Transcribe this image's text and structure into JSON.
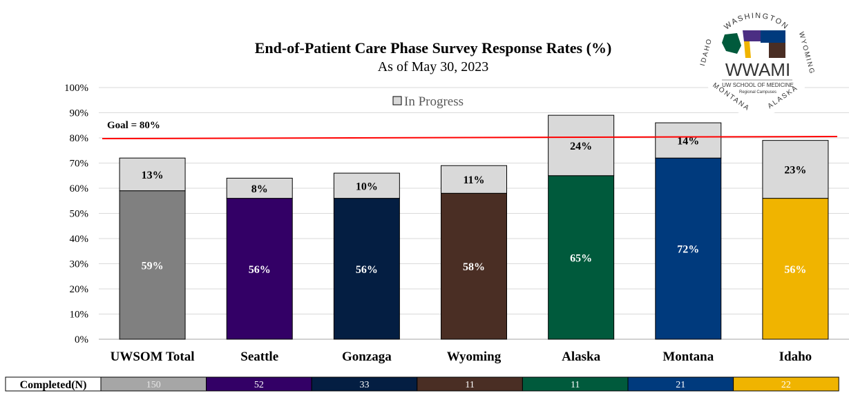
{
  "chart_data": {
    "type": "bar",
    "stacked": true,
    "title": "End-of-Patient Care Phase Survey Response Rates (%)",
    "subtitle": "As of May 30, 2023",
    "categories": [
      "UWSOM Total",
      "Seattle",
      "Gonzaga",
      "Wyoming",
      "Alaska",
      "Montana",
      "Idaho"
    ],
    "series": [
      {
        "values": [
          59,
          56,
          56,
          58,
          65,
          72,
          56
        ],
        "colors": [
          "#808080",
          "#330066",
          "#041e42",
          "#4a2e24",
          "#005a3c",
          "#003a7d",
          "#f0b400"
        ]
      },
      {
        "name": "In Progress",
        "values": [
          13,
          8,
          10,
          11,
          24,
          14,
          23
        ],
        "color": "#d9d9d9"
      }
    ],
    "data_labels": {
      "completed": [
        "59%",
        "56%",
        "56%",
        "58%",
        "65%",
        "72%",
        "56%"
      ],
      "in_progress": [
        "13%",
        "8%",
        "10%",
        "11%",
        "24%",
        "14%",
        "23%"
      ]
    },
    "yticks": [
      "0%",
      "10%",
      "20%",
      "30%",
      "40%",
      "50%",
      "60%",
      "70%",
      "80%",
      "90%",
      "100%"
    ],
    "ylim": [
      0,
      100
    ],
    "goal": {
      "value": 80,
      "label": "Goal = 80%",
      "color": "#ff0000"
    },
    "legend_position": "top"
  },
  "table": {
    "header": "Completed(N)",
    "values": [
      "150",
      "52",
      "33",
      "11",
      "11",
      "21",
      "22"
    ],
    "text_colors": [
      "#e6e6e6",
      "#ffffff",
      "#ffffff",
      "#ffffff",
      "#ffffff",
      "#ffffff",
      "#ffffff"
    ],
    "fill_colors": [
      "#a6a6a6",
      "#330066",
      "#041e42",
      "#4a2e24",
      "#005a3c",
      "#003a7d",
      "#f0b400"
    ]
  },
  "logo": {
    "ring_text_top": "WASHINGTON",
    "ring_text_left": "IDAHO",
    "ring_text_right": "WYOMING",
    "ring_text_bottom_left": "MONTANA",
    "ring_text_bottom_right": "ALASKA",
    "name": "WWAMI",
    "line1": "UW SCHOOL OF MEDICINE",
    "line2": "Regional Campuses"
  }
}
